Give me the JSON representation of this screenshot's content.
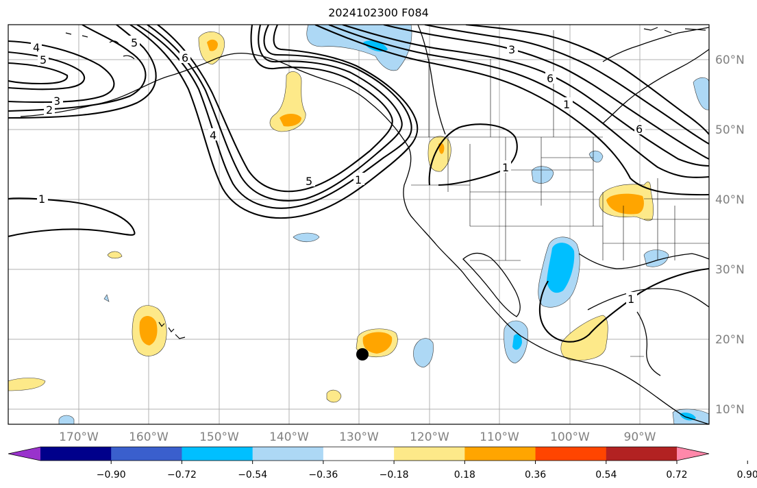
{
  "title": "2024102300 F084",
  "lon_labels": [
    {
      "value": -170,
      "text": "170°W"
    },
    {
      "value": -160,
      "text": "160°W"
    },
    {
      "value": -150,
      "text": "150°W"
    },
    {
      "value": -140,
      "text": "140°W"
    },
    {
      "value": -130,
      "text": "130°W"
    },
    {
      "value": -120,
      "text": "120°W"
    },
    {
      "value": -110,
      "text": "110°W"
    },
    {
      "value": -100,
      "text": "100°W"
    },
    {
      "value": -90,
      "text": "90°W"
    }
  ],
  "lat_labels": [
    {
      "value": 60,
      "text": "60°N"
    },
    {
      "value": 50,
      "text": "50°N"
    },
    {
      "value": 40,
      "text": "40°N"
    },
    {
      "value": 30,
      "text": "30°N"
    },
    {
      "value": 20,
      "text": "20°N"
    },
    {
      "value": 10,
      "text": "10°N"
    }
  ],
  "colorbar": {
    "colors": [
      "#9932cc",
      "#00008b",
      "#3a5fcd",
      "#00bfff",
      "#add8f5",
      "#ffffff",
      "#fde989",
      "#ffa500",
      "#ff4500",
      "#b22222",
      "#ff88aa"
    ],
    "ticks": [
      "−0.90",
      "−0.72",
      "−0.54",
      "−0.36",
      "−0.18",
      "0.18",
      "0.36",
      "0.54",
      "0.72",
      "0.90"
    ]
  },
  "contour_labels": [
    "4",
    "5",
    "3",
    "2",
    "6",
    "5",
    "4",
    "1",
    "5",
    "1",
    "1",
    "3",
    "6",
    "1",
    "6",
    "1"
  ],
  "marker": {
    "label": "storm marker"
  }
}
